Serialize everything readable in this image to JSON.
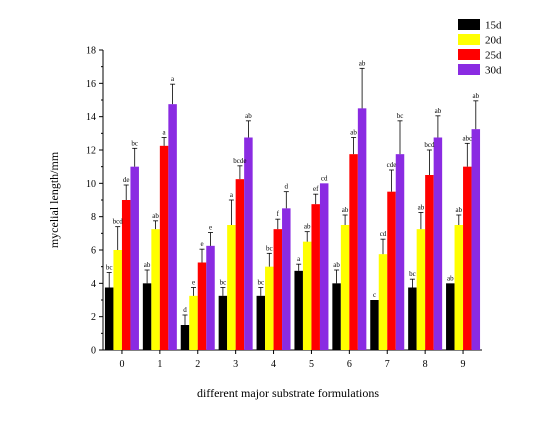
{
  "chart_data": {
    "type": "bar",
    "title": "",
    "xlabel": "different major substrate formulations",
    "ylabel": "mycelial length/mm",
    "ylim": [
      0,
      18
    ],
    "yticks": [
      0,
      2,
      4,
      6,
      8,
      10,
      12,
      14,
      16,
      18
    ],
    "categories": [
      "0",
      "1",
      "2",
      "3",
      "4",
      "5",
      "6",
      "7",
      "8",
      "9"
    ],
    "legend_position": "top-right",
    "grid": false,
    "series": [
      {
        "name": "15d",
        "color": "#000000",
        "values": [
          3.75,
          4.0,
          1.5,
          3.25,
          3.25,
          4.75,
          4.0,
          3.0,
          3.75,
          4.0
        ],
        "errors": [
          0.9,
          0.8,
          0.6,
          0.5,
          0.5,
          0.4,
          0.8,
          0.0,
          0.5,
          0.0
        ],
        "labels": [
          "bc",
          "ab",
          "d",
          "bc",
          "bc",
          "a",
          "ab",
          "c",
          "bc",
          "ab"
        ]
      },
      {
        "name": "20d",
        "color": "#ffff00",
        "values": [
          6.0,
          7.25,
          3.25,
          7.5,
          5.0,
          6.5,
          7.5,
          5.75,
          7.25,
          7.5
        ],
        "errors": [
          1.4,
          0.5,
          0.5,
          1.5,
          0.8,
          0.6,
          0.6,
          0.9,
          1.0,
          0.6
        ],
        "labels": [
          "bcd",
          "ab",
          "e",
          "a",
          "bc",
          "ab",
          "ab",
          "cd",
          "ab",
          "ab"
        ]
      },
      {
        "name": "25d",
        "color": "#ff0000",
        "values": [
          9.0,
          12.25,
          5.25,
          10.25,
          7.25,
          8.75,
          11.75,
          9.5,
          10.5,
          11.0
        ],
        "errors": [
          0.9,
          0.5,
          0.8,
          0.8,
          0.6,
          0.6,
          1.0,
          1.3,
          1.5,
          1.4
        ],
        "labels": [
          "de",
          "a",
          "e",
          "bcde",
          "f",
          "ef",
          "ab",
          "cde",
          "bcd",
          "abc"
        ]
      },
      {
        "name": "30d",
        "color": "#8a2be2",
        "values": [
          11.0,
          14.75,
          6.25,
          12.75,
          8.5,
          10.0,
          14.5,
          11.75,
          12.75,
          13.25
        ],
        "errors": [
          1.1,
          1.2,
          0.8,
          1.0,
          1.0,
          0.0,
          2.4,
          2.0,
          1.3,
          1.7
        ],
        "labels": [
          "bc",
          "a",
          "e",
          "ab",
          "d",
          "cd",
          "ab",
          "bc",
          "ab",
          "ab"
        ]
      }
    ]
  }
}
